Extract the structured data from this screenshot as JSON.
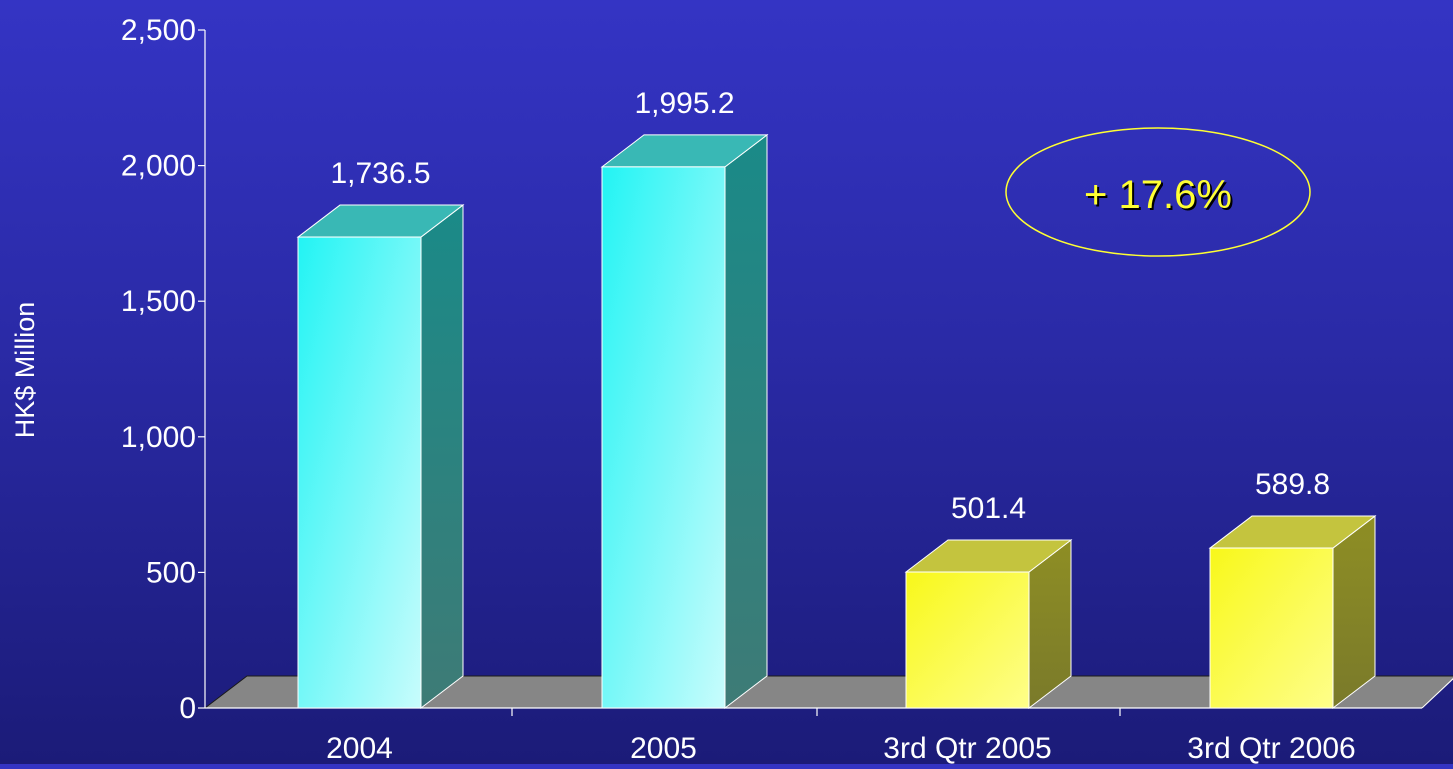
{
  "chart_data": {
    "type": "bar",
    "categories": [
      "2004",
      "2005",
      "3rd Qtr 2005",
      "3rd Qtr 2006"
    ],
    "series": [
      {
        "values": [
          1736.5,
          1995.2,
          501.4,
          589.8
        ]
      }
    ],
    "data_labels": [
      "1,736.5",
      "1,995.2",
      "501.4",
      "589.8"
    ],
    "bar_colors": [
      "#22f4f4",
      "#22f4f4",
      "#f8f82a",
      "#f8f82a"
    ],
    "ylabel": "HK$ Million",
    "ylim": [
      0,
      2500
    ],
    "yticks": [
      0,
      500,
      1000,
      1500,
      2000,
      2500
    ],
    "ytick_labels": [
      "0",
      "500",
      "1,000",
      "1,500",
      "2,000",
      "2,500"
    ],
    "grid": false,
    "style": "3d",
    "annotation": {
      "text": "+ 17.6%",
      "color": "#ffff33"
    }
  }
}
